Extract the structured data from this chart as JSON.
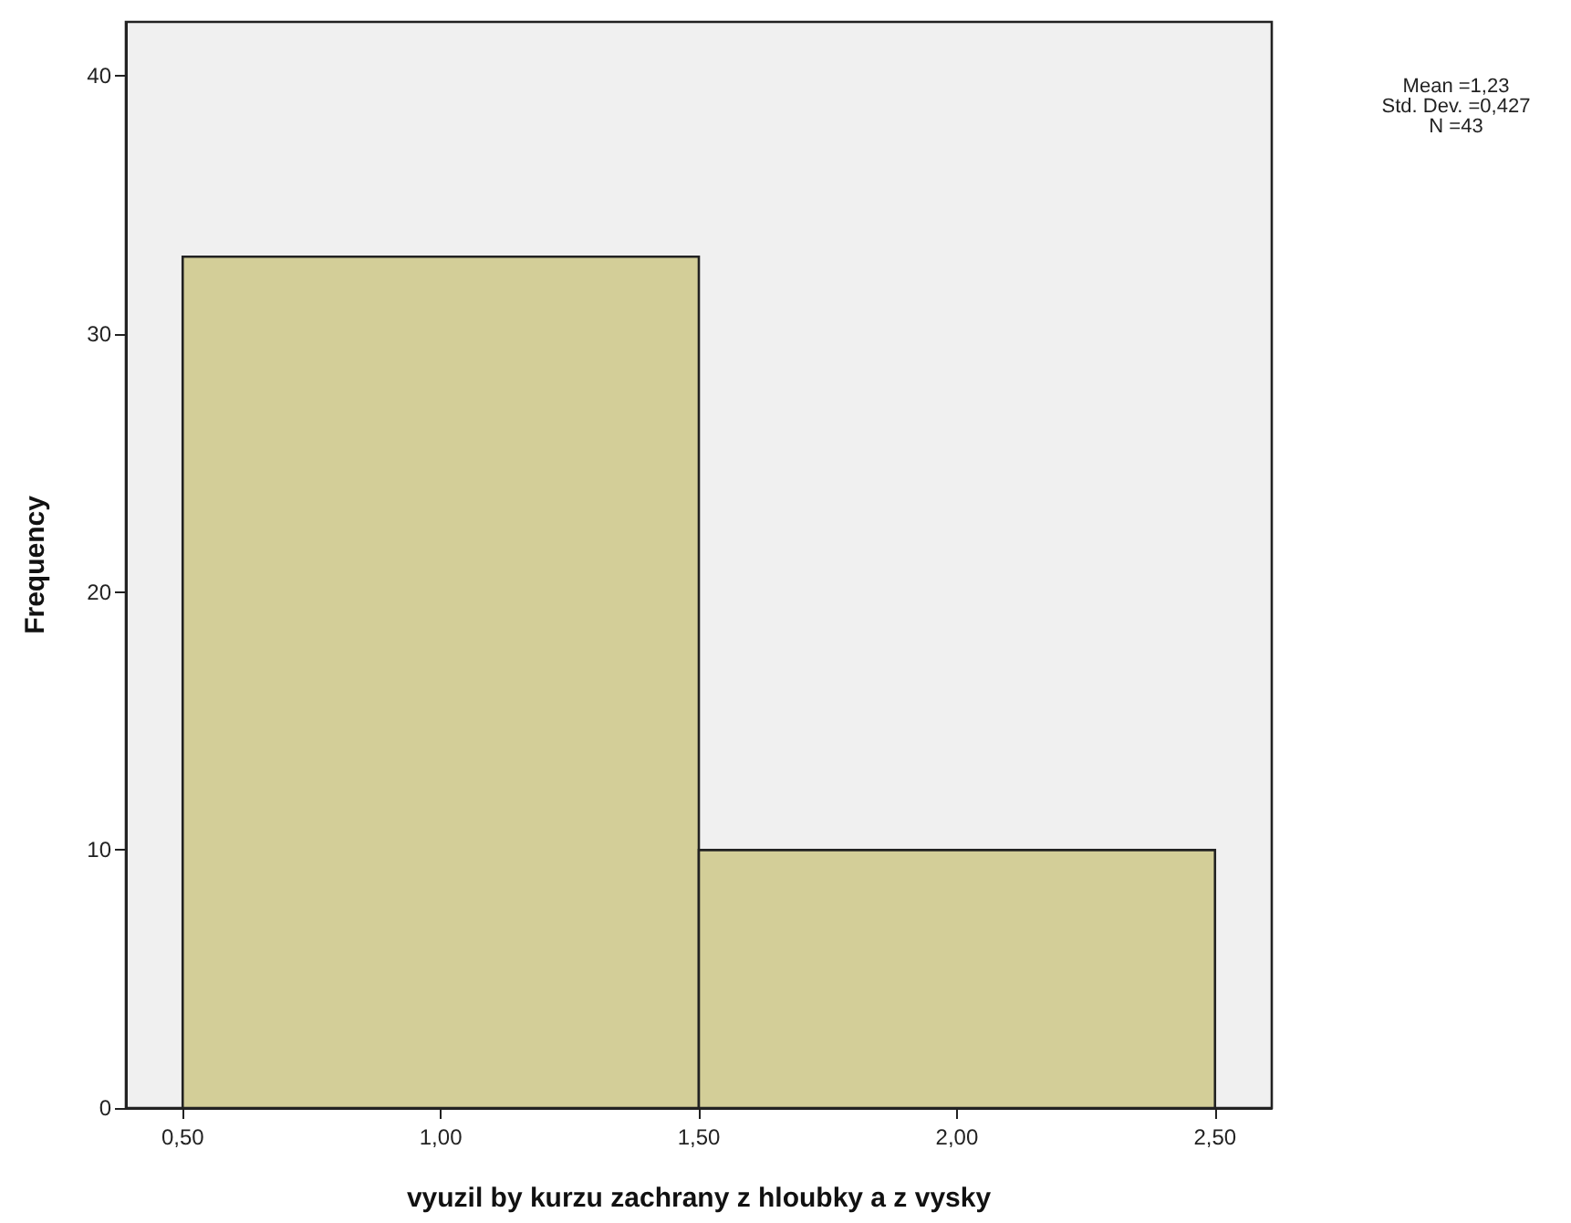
{
  "chart_data": {
    "type": "histogram",
    "xlabel": "vyuzil by kurzu zachrany z hloubky a z vysky",
    "ylabel": "Frequency",
    "bins": [
      0.5,
      1.5,
      2.5
    ],
    "values": [
      33,
      10
    ],
    "color": "#d3ce98",
    "xlim": [
      0.39,
      2.61
    ],
    "xticks": [
      {
        "value": 0.5,
        "label": "0,50"
      },
      {
        "value": 1,
        "label": "1,00"
      },
      {
        "value": 1.5,
        "label": "1,50"
      },
      {
        "value": 2,
        "label": "2,00"
      },
      {
        "value": 2.5,
        "label": "2,50"
      }
    ],
    "ylim": [
      0,
      42.1
    ],
    "yticks": [
      0,
      10,
      20,
      30,
      40
    ],
    "annotations": [
      "Mean =1,23",
      "Std. Dev. =0,427",
      "N =43"
    ],
    "grid": false
  }
}
